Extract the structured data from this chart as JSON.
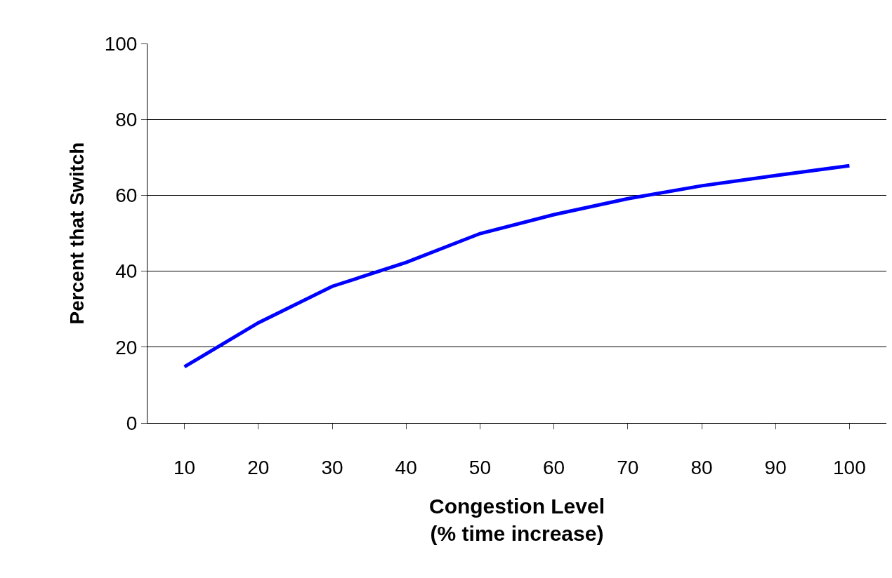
{
  "chart_data": {
    "type": "line",
    "xlabel": "Congestion Level\n(% time increase)",
    "ylabel": "Percent that Switch",
    "categories": [
      "10",
      "20",
      "30",
      "40",
      "50",
      "60",
      "70",
      "80",
      "90",
      "100"
    ],
    "series": [
      {
        "color": "#0000ff",
        "values": [
          14.8,
          26.4,
          36,
          42.3,
          49.9,
          54.9,
          59.1,
          62.5,
          65.2,
          67.8
        ]
      }
    ],
    "ylim": [
      0,
      100
    ],
    "yticks": [
      0,
      20,
      40,
      60,
      80,
      100
    ],
    "grid": "y",
    "marker": "none",
    "line_style": "solid"
  }
}
